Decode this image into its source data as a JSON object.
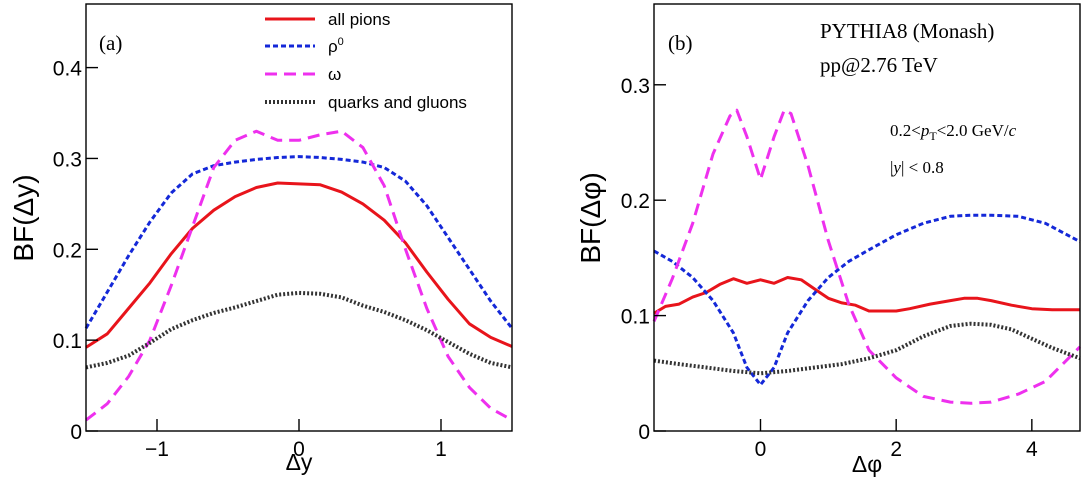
{
  "chart_data": [
    {
      "type": "line",
      "panel_label": "(a)",
      "xlabel": "Δy",
      "ylabel": "BF(Δy)",
      "xlim": [
        -1.5,
        1.5
      ],
      "ylim": [
        0,
        0.47
      ],
      "xticks": [
        -1,
        0,
        1
      ],
      "xtick_labels": [
        "−1",
        "0",
        "1"
      ],
      "yticks": [
        0,
        0.1,
        0.2,
        0.3,
        0.4
      ],
      "ytick_labels": [
        "0",
        "0.1",
        "0.2",
        "0.3",
        "0.4"
      ],
      "grid": false,
      "legend": "top-right",
      "series": [
        {
          "name": "all pions",
          "color": "#e8141b",
          "style": "solid",
          "x": [
            -1.5,
            -1.35,
            -1.2,
            -1.05,
            -0.9,
            -0.75,
            -0.6,
            -0.45,
            -0.3,
            -0.15,
            0,
            0.15,
            0.3,
            0.45,
            0.6,
            0.75,
            0.9,
            1.05,
            1.2,
            1.35,
            1.5
          ],
          "y": [
            0.092,
            0.107,
            0.135,
            0.163,
            0.195,
            0.223,
            0.243,
            0.258,
            0.268,
            0.273,
            0.272,
            0.271,
            0.263,
            0.25,
            0.232,
            0.207,
            0.175,
            0.145,
            0.118,
            0.103,
            0.093
          ]
        },
        {
          "name": "ρ0",
          "color": "#1428d8",
          "style": "dotted-dense",
          "x": [
            -1.5,
            -1.35,
            -1.2,
            -1.05,
            -0.9,
            -0.75,
            -0.6,
            -0.45,
            -0.3,
            -0.15,
            0,
            0.15,
            0.3,
            0.45,
            0.6,
            0.75,
            0.9,
            1.05,
            1.2,
            1.35,
            1.5
          ],
          "y": [
            0.113,
            0.153,
            0.193,
            0.23,
            0.262,
            0.283,
            0.292,
            0.296,
            0.299,
            0.301,
            0.302,
            0.301,
            0.299,
            0.296,
            0.29,
            0.275,
            0.248,
            0.213,
            0.178,
            0.143,
            0.113
          ]
        },
        {
          "name": "ω",
          "color": "#ee30ee",
          "style": "dashed",
          "x": [
            -1.5,
            -1.35,
            -1.2,
            -1.05,
            -0.9,
            -0.75,
            -0.6,
            -0.45,
            -0.3,
            -0.15,
            0,
            0.15,
            0.3,
            0.45,
            0.6,
            0.75,
            0.9,
            1.05,
            1.2,
            1.35,
            1.5
          ],
          "y": [
            0.012,
            0.03,
            0.06,
            0.1,
            0.16,
            0.225,
            0.29,
            0.32,
            0.33,
            0.32,
            0.32,
            0.326,
            0.33,
            0.312,
            0.27,
            0.2,
            0.135,
            0.082,
            0.048,
            0.025,
            0.012
          ]
        },
        {
          "name": "quarks and gluons",
          "color": "#333333",
          "style": "dotted",
          "x": [
            -1.5,
            -1.35,
            -1.2,
            -1.05,
            -0.9,
            -0.75,
            -0.6,
            -0.45,
            -0.3,
            -0.15,
            0,
            0.15,
            0.3,
            0.45,
            0.6,
            0.75,
            0.9,
            1.05,
            1.2,
            1.35,
            1.5
          ],
          "y": [
            0.07,
            0.075,
            0.083,
            0.097,
            0.112,
            0.122,
            0.13,
            0.136,
            0.143,
            0.15,
            0.152,
            0.151,
            0.147,
            0.138,
            0.131,
            0.122,
            0.111,
            0.098,
            0.085,
            0.075,
            0.07
          ]
        }
      ]
    },
    {
      "type": "line",
      "panel_label": "(b)",
      "xlabel": "Δφ",
      "ylabel": "BF(Δφ)",
      "xlim": [
        -1.57,
        4.71
      ],
      "ylim": [
        0,
        0.37
      ],
      "xticks": [
        0,
        2,
        4
      ],
      "xtick_labels": [
        "0",
        "2",
        "4"
      ],
      "yticks": [
        0,
        0.1,
        0.2,
        0.3
      ],
      "ytick_labels": [
        "0",
        "0.1",
        "0.2",
        "0.3"
      ],
      "grid": false,
      "annotations": {
        "generator": "PYTHIA8 (Monash)",
        "system": "pp@2.76 TeV",
        "pt_range": "0.2<pT<2.0 GeV/c",
        "pt_prefix": "0.2<",
        "pt_symbol": "p",
        "pt_subscript": "T",
        "pt_suffix": "<2.0 GeV/",
        "pt_unit_c": "c",
        "rapidity_cut": "|y| < 0.8",
        "rapidity_open": "|",
        "rapidity_symbol": "y",
        "rapidity_close": "| < 0.8"
      },
      "series": [
        {
          "name": "all pions",
          "color": "#e8141b",
          "style": "solid",
          "x": [
            -1.57,
            -1.4,
            -1.2,
            -1.0,
            -0.8,
            -0.6,
            -0.4,
            -0.2,
            0.0,
            0.2,
            0.4,
            0.6,
            0.8,
            1.0,
            1.2,
            1.4,
            1.6,
            1.8,
            2.0,
            2.2,
            2.5,
            2.8,
            3.0,
            3.2,
            3.4,
            3.7,
            4.0,
            4.3,
            4.71
          ],
          "y": [
            0.102,
            0.108,
            0.11,
            0.116,
            0.12,
            0.127,
            0.132,
            0.128,
            0.131,
            0.128,
            0.133,
            0.131,
            0.123,
            0.115,
            0.111,
            0.109,
            0.104,
            0.104,
            0.104,
            0.106,
            0.11,
            0.113,
            0.115,
            0.115,
            0.113,
            0.109,
            0.106,
            0.105,
            0.105
          ]
        },
        {
          "name": "ρ0",
          "color": "#1428d8",
          "style": "dotted-dense",
          "x": [
            -1.57,
            -1.3,
            -1.0,
            -0.7,
            -0.4,
            -0.2,
            0.0,
            0.2,
            0.4,
            0.7,
            1.0,
            1.3,
            1.6,
            2.0,
            2.4,
            2.8,
            3.1,
            3.4,
            3.8,
            4.2,
            4.71
          ],
          "y": [
            0.156,
            0.147,
            0.133,
            0.113,
            0.085,
            0.055,
            0.04,
            0.055,
            0.085,
            0.113,
            0.133,
            0.147,
            0.157,
            0.17,
            0.18,
            0.186,
            0.187,
            0.187,
            0.186,
            0.18,
            0.164
          ]
        },
        {
          "name": "ω",
          "color": "#ee30ee",
          "style": "dashed",
          "x": [
            -1.57,
            -1.3,
            -1.0,
            -0.7,
            -0.45,
            -0.35,
            -0.2,
            0.0,
            0.2,
            0.35,
            0.45,
            0.7,
            1.0,
            1.3,
            1.6,
            2.0,
            2.4,
            2.8,
            3.1,
            3.4,
            3.8,
            4.2,
            4.71
          ],
          "y": [
            0.095,
            0.132,
            0.18,
            0.24,
            0.273,
            0.278,
            0.255,
            0.218,
            0.255,
            0.278,
            0.275,
            0.23,
            0.165,
            0.11,
            0.07,
            0.046,
            0.03,
            0.025,
            0.024,
            0.025,
            0.032,
            0.043,
            0.073
          ]
        },
        {
          "name": "quarks and gluons",
          "color": "#333333",
          "style": "dotted",
          "x": [
            -1.57,
            -1.2,
            -0.8,
            -0.4,
            0.0,
            0.4,
            0.8,
            1.2,
            1.6,
            2.0,
            2.4,
            2.8,
            3.1,
            3.4,
            3.7,
            4.0,
            4.3,
            4.71
          ],
          "y": [
            0.061,
            0.058,
            0.055,
            0.052,
            0.05,
            0.052,
            0.055,
            0.058,
            0.063,
            0.07,
            0.082,
            0.091,
            0.093,
            0.092,
            0.088,
            0.08,
            0.072,
            0.063
          ]
        }
      ]
    }
  ]
}
